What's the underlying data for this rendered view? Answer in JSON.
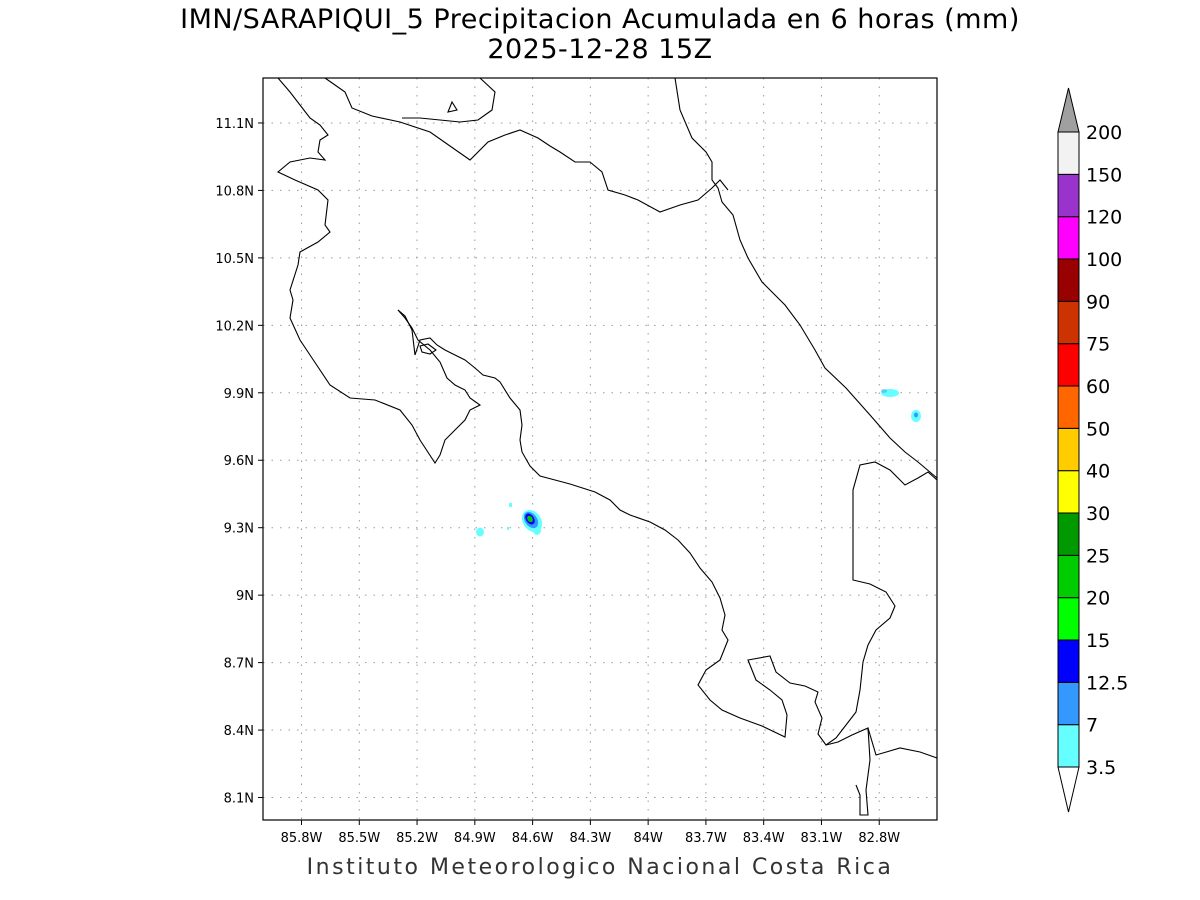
{
  "title": {
    "line1": "IMN/SARAPIQUI_5 Precipitacion Acumulada en 6 horas (mm)",
    "line2": "2025-12-28 15Z"
  },
  "footer": "Instituto Meteorologico Nacional Costa Rica",
  "map": {
    "lon_range": [
      -86.0,
      -82.5
    ],
    "lat_range": [
      8.0,
      11.3
    ],
    "grid": "dotted",
    "lon_ticks": [
      {
        "value": -85.8,
        "label": "85.8W"
      },
      {
        "value": -85.5,
        "label": "85.5W"
      },
      {
        "value": -85.2,
        "label": "85.2W"
      },
      {
        "value": -84.9,
        "label": "84.9W"
      },
      {
        "value": -84.6,
        "label": "84.6W"
      },
      {
        "value": -84.3,
        "label": "84.3W"
      },
      {
        "value": -84.0,
        "label": "84W"
      },
      {
        "value": -83.7,
        "label": "83.7W"
      },
      {
        "value": -83.4,
        "label": "83.4W"
      },
      {
        "value": -83.1,
        "label": "83.1W"
      },
      {
        "value": -82.8,
        "label": "82.8W"
      }
    ],
    "lat_ticks": [
      {
        "value": 11.1,
        "label": "11.1N"
      },
      {
        "value": 10.8,
        "label": "10.8N"
      },
      {
        "value": 10.5,
        "label": "10.5N"
      },
      {
        "value": 10.2,
        "label": "10.2N"
      },
      {
        "value": 9.9,
        "label": "9.9N"
      },
      {
        "value": 9.6,
        "label": "9.6N"
      },
      {
        "value": 9.3,
        "label": "9.3N"
      },
      {
        "value": 9.0,
        "label": "9N"
      },
      {
        "value": 8.7,
        "label": "8.7N"
      },
      {
        "value": 8.4,
        "label": "8.4N"
      },
      {
        "value": 8.1,
        "label": "8.1N"
      }
    ]
  },
  "colorbar": {
    "under_color": "#ffffff",
    "over_color": "#a0a0a0",
    "levels": [
      {
        "label": "3.5",
        "color": "#66ffff"
      },
      {
        "label": "7",
        "color": "#3399ff"
      },
      {
        "label": "12.5",
        "color": "#0000ff"
      },
      {
        "label": "15",
        "color": "#00ff00"
      },
      {
        "label": "20",
        "color": "#00cc00"
      },
      {
        "label": "25",
        "color": "#009900"
      },
      {
        "label": "30",
        "color": "#ffff00"
      },
      {
        "label": "40",
        "color": "#ffcc00"
      },
      {
        "label": "50",
        "color": "#ff6600"
      },
      {
        "label": "60",
        "color": "#ff0000"
      },
      {
        "label": "75",
        "color": "#cc3300"
      },
      {
        "label": "90",
        "color": "#990000"
      },
      {
        "label": "100",
        "color": "#ff00ff"
      },
      {
        "label": "120",
        "color": "#9933cc"
      },
      {
        "label": "150",
        "color": "#f2f2f2"
      },
      {
        "label": "200",
        "color": null
      }
    ]
  }
}
